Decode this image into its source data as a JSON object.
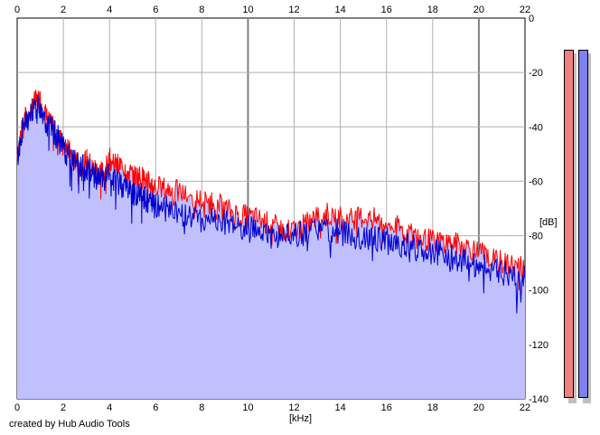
{
  "chart_data": {
    "type": "area",
    "title": "",
    "xlabel": "[kHz]",
    "ylabel": "[dB]",
    "xlim": [
      0,
      22
    ],
    "ylim": [
      -140,
      0
    ],
    "x_ticks": [
      "0",
      "2",
      "4",
      "6",
      "8",
      "10",
      "12",
      "14",
      "16",
      "18",
      "20",
      "22"
    ],
    "y_ticks": [
      "0",
      "-20",
      "-40",
      "-60",
      "-80",
      "-100",
      "-120",
      "-140"
    ],
    "grid": true,
    "series": [
      {
        "color": "#ff0000",
        "points": [
          [
            0,
            -50
          ],
          [
            0.25,
            -38
          ],
          [
            0.5,
            -35
          ],
          [
            0.75,
            -31
          ],
          [
            1.0,
            -30
          ],
          [
            1.25,
            -36
          ],
          [
            1.5,
            -40
          ],
          [
            1.75,
            -42
          ],
          [
            2.0,
            -47
          ],
          [
            2.25,
            -49
          ],
          [
            2.5,
            -52
          ],
          [
            2.75,
            -54
          ],
          [
            3.0,
            -52
          ],
          [
            3.25,
            -55
          ],
          [
            3.5,
            -56
          ],
          [
            3.75,
            -57
          ],
          [
            4.0,
            -52
          ],
          [
            4.25,
            -54
          ],
          [
            4.5,
            -54
          ],
          [
            4.75,
            -56
          ],
          [
            5.0,
            -58
          ],
          [
            5.25,
            -58
          ],
          [
            5.5,
            -59
          ],
          [
            5.75,
            -61
          ],
          [
            6.0,
            -62
          ],
          [
            6.5,
            -63
          ],
          [
            7.0,
            -64
          ],
          [
            7.5,
            -66
          ],
          [
            8.0,
            -67
          ],
          [
            8.5,
            -68
          ],
          [
            9.0,
            -70
          ],
          [
            9.5,
            -72
          ],
          [
            10.0,
            -73
          ],
          [
            10.5,
            -74
          ],
          [
            11.0,
            -76
          ],
          [
            11.5,
            -78
          ],
          [
            12.0,
            -78
          ],
          [
            12.5,
            -76
          ],
          [
            13.0,
            -73
          ],
          [
            13.5,
            -72
          ],
          [
            14.0,
            -73
          ],
          [
            14.5,
            -74
          ],
          [
            15.0,
            -73
          ],
          [
            15.5,
            -74
          ],
          [
            16.0,
            -76
          ],
          [
            16.5,
            -77
          ],
          [
            17.0,
            -79
          ],
          [
            17.5,
            -81
          ],
          [
            18.0,
            -82
          ],
          [
            18.5,
            -82
          ],
          [
            19.0,
            -83
          ],
          [
            19.5,
            -84
          ],
          [
            20.0,
            -86
          ],
          [
            20.5,
            -88
          ],
          [
            21.0,
            -90
          ],
          [
            21.5,
            -91
          ],
          [
            22.0,
            -92
          ]
        ]
      },
      {
        "color": "#0000cc",
        "points": [
          [
            0,
            -52
          ],
          [
            0.25,
            -40
          ],
          [
            0.5,
            -37
          ],
          [
            0.75,
            -33
          ],
          [
            1.0,
            -32
          ],
          [
            1.25,
            -38
          ],
          [
            1.5,
            -41
          ],
          [
            1.75,
            -44
          ],
          [
            2.0,
            -48
          ],
          [
            2.25,
            -51
          ],
          [
            2.5,
            -53
          ],
          [
            2.75,
            -55
          ],
          [
            3.0,
            -55
          ],
          [
            3.25,
            -57
          ],
          [
            3.5,
            -59
          ],
          [
            3.75,
            -60
          ],
          [
            4.0,
            -58
          ],
          [
            4.25,
            -60
          ],
          [
            4.5,
            -61
          ],
          [
            4.75,
            -62
          ],
          [
            5.0,
            -64
          ],
          [
            5.25,
            -65
          ],
          [
            5.5,
            -66
          ],
          [
            5.75,
            -68
          ],
          [
            6.0,
            -69
          ],
          [
            6.5,
            -70
          ],
          [
            7.0,
            -72
          ],
          [
            7.5,
            -73
          ],
          [
            8.0,
            -74
          ],
          [
            8.5,
            -74
          ],
          [
            9.0,
            -75
          ],
          [
            9.5,
            -76
          ],
          [
            10.0,
            -77
          ],
          [
            10.5,
            -78
          ],
          [
            11.0,
            -80
          ],
          [
            11.5,
            -80
          ],
          [
            12.0,
            -80
          ],
          [
            12.5,
            -79
          ],
          [
            13.0,
            -78
          ],
          [
            13.5,
            -78
          ],
          [
            14.0,
            -79
          ],
          [
            14.5,
            -80
          ],
          [
            15.0,
            -80
          ],
          [
            15.5,
            -81
          ],
          [
            16.0,
            -82
          ],
          [
            16.5,
            -83
          ],
          [
            17.0,
            -84
          ],
          [
            17.5,
            -85
          ],
          [
            18.0,
            -86
          ],
          [
            18.5,
            -87
          ],
          [
            19.0,
            -88
          ],
          [
            19.5,
            -90
          ],
          [
            20.0,
            -91
          ],
          [
            20.5,
            -92
          ],
          [
            21.0,
            -94
          ],
          [
            21.5,
            -95
          ],
          [
            22.0,
            -96
          ]
        ]
      }
    ],
    "area_fill": "#c0c0ff",
    "meters": [
      {
        "color": "#f08080",
        "level_db": -12
      },
      {
        "color": "#8080f0",
        "level_db": -13
      }
    ]
  },
  "footer": {
    "credit": "created by Hub Audio Tools"
  }
}
